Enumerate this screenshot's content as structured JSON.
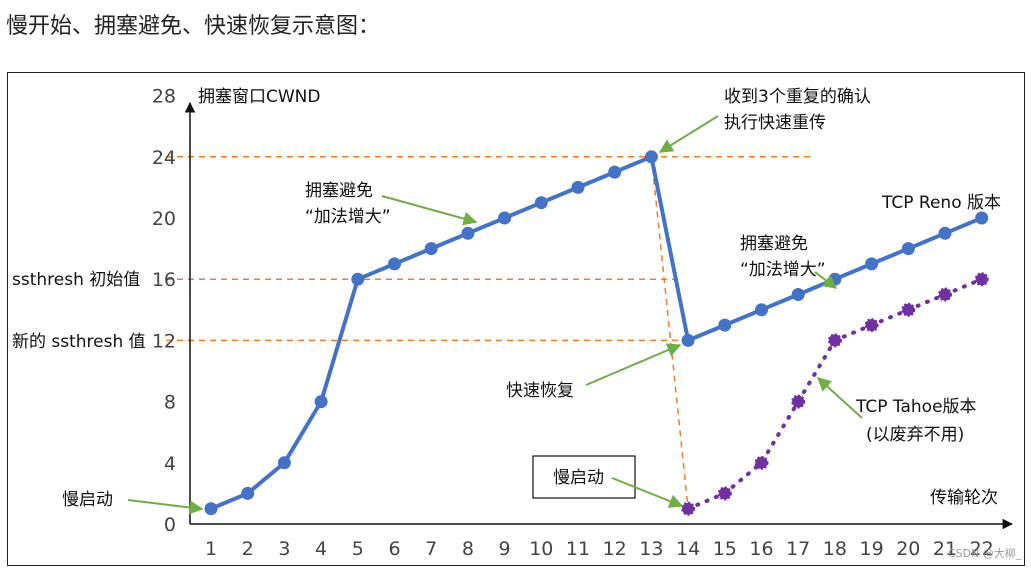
{
  "page": {
    "heading": "慢开始、拥塞避免、快速恢复示意图："
  },
  "chart_data": {
    "type": "line",
    "title": "",
    "ylabel": "拥塞窗口CWND",
    "xlabel": "传输轮次",
    "x": [
      1,
      2,
      3,
      4,
      5,
      6,
      7,
      8,
      9,
      10,
      11,
      12,
      13,
      14,
      15,
      16,
      17,
      18,
      19,
      20,
      21,
      22
    ],
    "xticks": [
      "1",
      "2",
      "3",
      "4",
      "5",
      "6",
      "7",
      "8",
      "9",
      "10",
      "11",
      "12",
      "13",
      "14",
      "15",
      "16",
      "17",
      "18",
      "19",
      "20",
      "21",
      "22"
    ],
    "yticks": [
      "0",
      "4",
      "8",
      "12",
      "16",
      "20",
      "24",
      "28"
    ],
    "ylim": [
      0,
      28
    ],
    "xlim": [
      1,
      22
    ],
    "series": [
      {
        "name": "TCP Reno 版本",
        "color": "#4472c4",
        "style": "solid",
        "x": [
          1,
          2,
          3,
          4,
          5,
          6,
          7,
          8,
          9,
          10,
          11,
          12,
          13,
          14,
          15,
          16,
          17,
          18,
          19,
          20,
          21,
          22
        ],
        "values": [
          1,
          2,
          4,
          8,
          16,
          17,
          18,
          19,
          20,
          21,
          22,
          23,
          24,
          12,
          13,
          14,
          15,
          16,
          17,
          18,
          19,
          20
        ]
      },
      {
        "name": "TCP Tahoe版本",
        "color": "#7030a0",
        "style": "dotted",
        "x": [
          14,
          15,
          16,
          17,
          18,
          19,
          20,
          21,
          22
        ],
        "values": [
          1,
          2,
          4,
          8,
          12,
          13,
          14,
          15,
          16
        ]
      }
    ],
    "reference_lines": [
      {
        "y": 24,
        "color": "#ed7d31",
        "label": ""
      },
      {
        "y": 16,
        "color": "#ed7d31",
        "label": "ssthresh 初始值"
      },
      {
        "y": 12,
        "color": "#ed7d31",
        "label": "新的 ssthresh 值"
      }
    ],
    "annotations": {
      "slow_start_1": "慢启动",
      "cong_avoid_1_line1": "拥塞避免",
      "cong_avoid_1_line2": "“加法增大”",
      "three_dup_line1": "收到3个重复的确认",
      "three_dup_line2": "执行快速重传",
      "reno_label": "TCP Reno 版本",
      "cong_avoid_2_line1": "拥塞避免",
      "cong_avoid_2_line2": "“加法增大”",
      "fast_recovery": "快速恢复",
      "slow_start_2": "慢启动",
      "tahoe_line1": "TCP Tahoe版本",
      "tahoe_line2": "(以废弃不用)"
    },
    "watermark": "CSDN @大柳_",
    "grid": false,
    "legend": "none"
  }
}
